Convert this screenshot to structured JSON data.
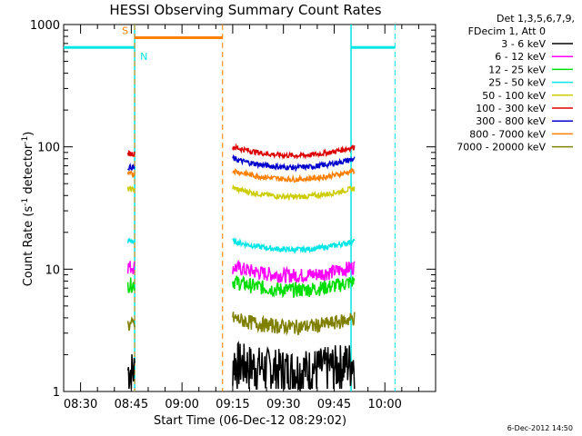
{
  "chart_data": {
    "type": "line",
    "title": "HESSI Observing Summary Count Rates",
    "xlabel": "Start Time (06-Dec-12 08:29:02)",
    "ylabel_main": "Count Rate (s",
    "ylabel_sup1": "-1",
    "ylabel_mid": " detector",
    "ylabel_sup2": "-1",
    "ylabel_end": ")",
    "y_scale": "log",
    "ylim": [
      1,
      1000
    ],
    "xlim": [
      "08:25",
      "10:15"
    ],
    "x_ticks": [
      "08:30",
      "08:45",
      "09:00",
      "09:15",
      "09:30",
      "09:45",
      "10:00"
    ],
    "y_ticks": [
      {
        "value": 1,
        "label": "1"
      },
      {
        "value": 10,
        "label": "10"
      },
      {
        "value": 100,
        "label": "100"
      },
      {
        "value": 1000,
        "label": "1000"
      }
    ],
    "legend_header": [
      "Det 1,3,5,6,7,9,",
      "FDecim 1, Att 0"
    ],
    "legend_position": "right",
    "series": [
      {
        "name": "3 - 6 keV",
        "color": "#000000",
        "segments": [
          {
            "start": "08:44",
            "end": "08:46",
            "value": 1.5
          },
          {
            "start": "09:15",
            "end": "09:51",
            "value": 1.8
          }
        ]
      },
      {
        "name": "6 - 12 keV",
        "color": "#ff00ff",
        "segments": [
          {
            "start": "08:44",
            "end": "08:46",
            "value": 10.5
          },
          {
            "start": "09:15",
            "end": "09:51",
            "value": 10.5
          }
        ]
      },
      {
        "name": "12 - 25 keV",
        "color": "#00dd00",
        "segments": [
          {
            "start": "08:44",
            "end": "08:46",
            "value": 7.5
          },
          {
            "start": "09:15",
            "end": "09:51",
            "value": 8
          }
        ]
      },
      {
        "name": "25 - 50 keV",
        "color": "#00e5e5",
        "segments": [
          {
            "start": "08:44",
            "end": "08:46",
            "value": 17
          },
          {
            "start": "09:15",
            "end": "09:51",
            "value": 17
          }
        ]
      },
      {
        "name": "50 - 100 keV",
        "color": "#cccc00",
        "segments": [
          {
            "start": "08:44",
            "end": "08:46",
            "value": 45
          },
          {
            "start": "09:15",
            "end": "09:51",
            "value": 46
          }
        ]
      },
      {
        "name": "100 - 300 keV",
        "color": "#dd0000",
        "segments": [
          {
            "start": "08:44",
            "end": "08:46",
            "value": 88
          },
          {
            "start": "09:15",
            "end": "09:51",
            "value": 100
          }
        ]
      },
      {
        "name": "300 - 800 keV",
        "color": "#0000cc",
        "segments": [
          {
            "start": "08:44",
            "end": "08:46",
            "value": 68
          },
          {
            "start": "09:15",
            "end": "09:51",
            "value": 80
          }
        ]
      },
      {
        "name": "800 - 7000 keV",
        "color": "#ff7f00",
        "segments": [
          {
            "start": "08:44",
            "end": "08:46",
            "value": 60
          },
          {
            "start": "09:15",
            "end": "09:51",
            "value": 64
          }
        ]
      },
      {
        "name": "7000 - 20000 keV",
        "color": "#808000",
        "segments": [
          {
            "start": "08:44",
            "end": "08:46",
            "value": 3.5
          },
          {
            "start": "09:15",
            "end": "09:51",
            "value": 4
          }
        ]
      }
    ],
    "night_flag": {
      "color": "#00e5e5",
      "label": "N",
      "value": 650,
      "intervals": [
        [
          "08:25",
          "08:46"
        ],
        [
          "09:50",
          "10:03"
        ]
      ],
      "dashed_end": "10:03"
    },
    "saa_flag": {
      "color": "#ff7f00",
      "label": "S",
      "value": 780,
      "intervals": [
        [
          "08:46",
          "09:12"
        ]
      ],
      "start_line": "08:46",
      "dashed_end": "09:12"
    },
    "timestamp": "6-Dec-2012 14:50"
  }
}
